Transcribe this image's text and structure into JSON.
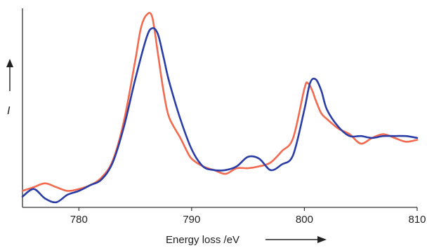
{
  "chart_data": {
    "type": "line",
    "title": "",
    "xlabel": "Energy loss /eV",
    "ylabel": "I",
    "xlim": [
      775,
      810
    ],
    "ylim": [
      0,
      1
    ],
    "x_ticks": [
      780,
      790,
      800,
      810
    ],
    "x_tick_labels": [
      "780",
      "790",
      "800",
      "810"
    ],
    "grid": false,
    "legend": "none",
    "series": [
      {
        "color": "#f26a4f",
        "x": [
          775,
          776,
          777,
          778,
          779,
          780,
          781,
          782,
          783,
          784,
          785,
          785.5,
          786,
          786.5,
          787,
          787.5,
          788,
          789,
          789.5,
          790,
          791,
          792,
          793,
          794,
          795,
          796,
          797,
          798,
          799,
          800,
          800.3,
          800.7,
          801,
          801.5,
          802,
          803,
          804,
          805,
          806,
          807,
          808,
          809,
          810
        ],
        "y": [
          0.05,
          0.07,
          0.09,
          0.07,
          0.05,
          0.06,
          0.08,
          0.12,
          0.21,
          0.42,
          0.74,
          0.91,
          0.98,
          0.97,
          0.78,
          0.58,
          0.44,
          0.33,
          0.27,
          0.22,
          0.18,
          0.16,
          0.14,
          0.17,
          0.17,
          0.18,
          0.2,
          0.26,
          0.33,
          0.59,
          0.62,
          0.58,
          0.53,
          0.46,
          0.43,
          0.38,
          0.35,
          0.3,
          0.33,
          0.35,
          0.33,
          0.31,
          0.32
        ]
      },
      {
        "color": "#2a3da6",
        "x": [
          775,
          776,
          777,
          778,
          779,
          780,
          781,
          782,
          783,
          784,
          785,
          786,
          786.5,
          787,
          787.5,
          788,
          789,
          790,
          791,
          792,
          793,
          794,
          795,
          796,
          797,
          798,
          799,
          800,
          800.5,
          801,
          801.5,
          802,
          803,
          804,
          805,
          806,
          807,
          808,
          809,
          810
        ],
        "y": [
          0.02,
          0.06,
          0.01,
          -0.01,
          0.03,
          0.05,
          0.08,
          0.11,
          0.2,
          0.39,
          0.64,
          0.86,
          0.91,
          0.88,
          0.76,
          0.63,
          0.43,
          0.27,
          0.18,
          0.16,
          0.16,
          0.18,
          0.23,
          0.22,
          0.16,
          0.19,
          0.24,
          0.48,
          0.62,
          0.64,
          0.58,
          0.48,
          0.39,
          0.34,
          0.34,
          0.33,
          0.34,
          0.34,
          0.34,
          0.33
        ]
      }
    ]
  }
}
